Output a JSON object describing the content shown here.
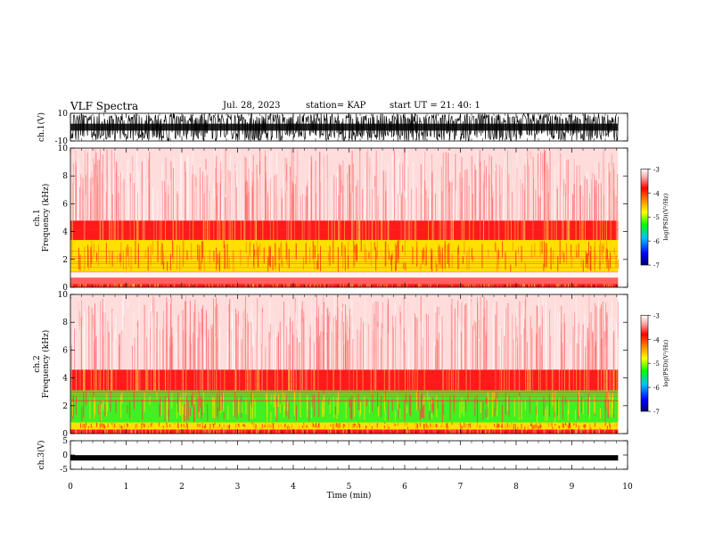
{
  "header": {
    "title": "VLF Spectra",
    "date": "Jul. 28, 2023",
    "station": "station= KAP",
    "start": "start  UT  =   21: 40: 1"
  },
  "chart_data": [
    {
      "type": "line",
      "name": "ch1-waveform",
      "ylabel": "ch.1(V)",
      "ylim": [
        -10,
        10
      ],
      "yticks": [
        "10",
        "-10"
      ],
      "xlim": [
        0,
        10
      ],
      "data_end_min": 9.83,
      "color": "#000000"
    },
    {
      "type": "heatmap",
      "name": "ch1-spectrogram",
      "ylabel": "ch.1\nFrequency  (kHz)",
      "ylim": [
        0,
        10
      ],
      "yticks": [
        "0",
        "2",
        "4",
        "6",
        "8",
        "10"
      ],
      "xlim": [
        0,
        10
      ],
      "data_end_min": 9.83,
      "bands_khz": [
        {
          "from": 0,
          "to": 0.25,
          "level": "red"
        },
        {
          "from": 0.25,
          "to": 0.7,
          "level": "red-lines"
        },
        {
          "from": 0.7,
          "to": 1.1,
          "level": "gap"
        },
        {
          "from": 1.1,
          "to": 3.4,
          "level": "yellow"
        },
        {
          "from": 3.4,
          "to": 4.8,
          "level": "red"
        },
        {
          "from": 4.8,
          "to": 10,
          "level": "light-red"
        }
      ],
      "colorbar": {
        "label": "log(PSD)(V²/Hz)",
        "ticks": [
          "-3",
          "-4",
          "-5",
          "-6",
          "-7"
        ],
        "range": [
          -7,
          -3
        ]
      }
    },
    {
      "type": "heatmap",
      "name": "ch2-spectrogram",
      "ylabel": "ch.2\nFrequency  (kHz)",
      "ylim": [
        0,
        10
      ],
      "yticks": [
        "0",
        "2",
        "4",
        "6",
        "8",
        "10"
      ],
      "xlim": [
        0,
        10
      ],
      "data_end_min": 9.83,
      "bands_khz": [
        {
          "from": 0,
          "to": 0.3,
          "level": "red"
        },
        {
          "from": 0.3,
          "to": 0.8,
          "level": "yellow"
        },
        {
          "from": 0.8,
          "to": 3.1,
          "level": "green"
        },
        {
          "from": 3.1,
          "to": 4.6,
          "level": "red"
        },
        {
          "from": 4.6,
          "to": 10,
          "level": "light-red"
        }
      ],
      "colorbar": {
        "label": "log(PSD)(V²/Hz)",
        "ticks": [
          "-3",
          "-4",
          "-5",
          "-6",
          "-7"
        ],
        "range": [
          -7,
          -3
        ]
      }
    },
    {
      "type": "line",
      "name": "ch3-waveform",
      "ylabel": "ch.3(V)",
      "ylim": [
        -5,
        5
      ],
      "yticks": [
        "5",
        "0",
        "-5"
      ],
      "xlim": [
        0,
        10
      ],
      "data_end_min": 9.83,
      "level_v": -1,
      "color": "#000000"
    }
  ],
  "x_axis": {
    "label": "Time  (min)",
    "ticks": [
      "0",
      "1",
      "2",
      "3",
      "4",
      "5",
      "6",
      "7",
      "8",
      "9",
      "10"
    ]
  },
  "colors": {
    "colormap": [
      "#000080",
      "#0000ff",
      "#00b0ff",
      "#00ff00",
      "#ffff00",
      "#ff8000",
      "#ff0000",
      "#ffffff"
    ]
  }
}
